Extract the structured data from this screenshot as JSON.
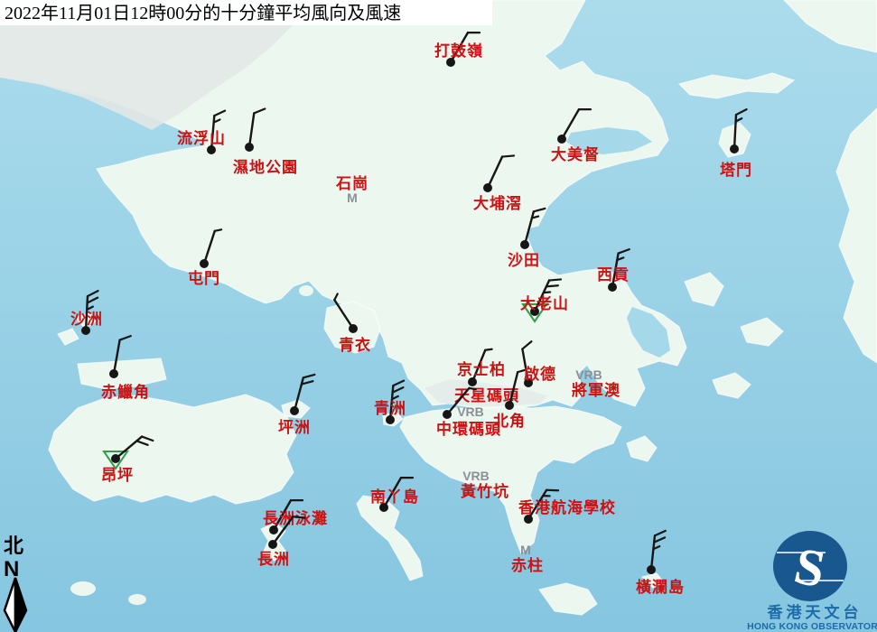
{
  "title": "2022年11月01日12時00分的十分鐘平均風向及風速",
  "colors": {
    "sea_top": "#abdcec",
    "sea_bottom": "#86c6e0",
    "land": "#ecf7ef",
    "urban": "#e2e8e6",
    "label_red": "#cc1212",
    "remark_gray": "#8a9094",
    "barb_black": "#161616",
    "triangle_green": "#2f9e44",
    "logo_blue": "#19578f",
    "logo_text_blue": "#1c6cab",
    "title_bg": "#ffffff"
  },
  "compass": {
    "zh": "北",
    "en": "N"
  },
  "logo": {
    "zh": "香港天文台",
    "en": "HONG KONG OBSERVATORY"
  },
  "legend_remarks": {
    "variable": "VRB",
    "missing": "M"
  },
  "stations": [
    {
      "id": "ta-kwu-ling",
      "name": "打鼓嶺",
      "dot": [
        499,
        69
      ],
      "barb": {
        "from_deg": 30,
        "ticks": [
          1
        ]
      },
      "label": [
        508,
        56
      ]
    },
    {
      "id": "lau-fau-shan",
      "name": "流浮山",
      "dot": [
        234,
        166
      ],
      "barb": {
        "from_deg": 5,
        "ticks": [
          1,
          0.5
        ]
      },
      "label": [
        223,
        153
      ]
    },
    {
      "id": "wetland-park",
      "name": "濕地公園",
      "dot": [
        276,
        163
      ],
      "barb": {
        "from_deg": 8,
        "ticks": [
          1
        ]
      },
      "label": [
        294,
        185
      ]
    },
    {
      "id": "shek-kong",
      "name": "石崗",
      "label": [
        390,
        203
      ],
      "remark": {
        "text": "M",
        "at": [
          390,
          219
        ]
      }
    },
    {
      "id": "tai-po-kau",
      "name": "大埔滘",
      "dot": [
        540,
        208
      ],
      "barb": {
        "from_deg": 25,
        "ticks": [
          1
        ]
      },
      "label": [
        551,
        225
      ]
    },
    {
      "id": "tai-mei-tuk",
      "name": "大美督",
      "dot": [
        622,
        154
      ],
      "barb": {
        "from_deg": 30,
        "ticks": [
          1
        ]
      },
      "label": [
        637,
        171
      ]
    },
    {
      "id": "tap-mun",
      "name": "塔門",
      "dot": [
        813,
        165
      ],
      "barb": {
        "from_deg": 3,
        "ticks": [
          1,
          0.5
        ]
      },
      "label": [
        815,
        188
      ]
    },
    {
      "id": "sha-tin",
      "name": "沙田",
      "dot": [
        581,
        271
      ],
      "barb": {
        "from_deg": 15,
        "ticks": [
          1,
          0.5
        ]
      },
      "label": [
        580,
        288
      ]
    },
    {
      "id": "sai-kung",
      "name": "西貢",
      "dot": [
        678,
        318
      ],
      "barb": {
        "from_deg": 10,
        "ticks": [
          1,
          0.5
        ]
      },
      "label": [
        679,
        304
      ]
    },
    {
      "id": "tates-cairn",
      "name": "大老山",
      "dot": [
        592,
        345
      ],
      "barb": {
        "from_deg": 25,
        "ticks": [
          1,
          1,
          0.5
        ]
      },
      "label": [
        603,
        336
      ],
      "triangle": true
    },
    {
      "id": "tuen-mun",
      "name": "屯門",
      "dot": [
        226,
        292
      ],
      "barb": {
        "from_deg": 18,
        "ticks": [
          0.5
        ]
      },
      "label": [
        226,
        308
      ]
    },
    {
      "id": "sha-chau",
      "name": "沙洲",
      "dot": [
        95,
        366
      ],
      "barb": {
        "from_deg": 3,
        "ticks": [
          1,
          1,
          0.5
        ]
      },
      "label": [
        96,
        353
      ]
    },
    {
      "id": "chek-lap-kok",
      "name": "赤鱲角",
      "dot": [
        126,
        414
      ],
      "barb": {
        "from_deg": 10,
        "ticks": [
          1
        ]
      },
      "label": [
        139,
        434
      ]
    },
    {
      "id": "tsing-yi",
      "name": "青衣",
      "dot": [
        391,
        364
      ],
      "barb": {
        "from_deg": -33,
        "ticks": [
          0.5
        ]
      },
      "label": [
        393,
        382
      ]
    },
    {
      "id": "kings-park",
      "name": "京士柏",
      "dot": [
        523,
        423
      ],
      "barb": {
        "from_deg": 22,
        "ticks": [
          0.5
        ]
      },
      "label": [
        533,
        409
      ]
    },
    {
      "id": "kai-tak",
      "name": "啟德",
      "dot": [
        585,
        424
      ],
      "barb": {
        "from_deg": -10,
        "ticks": [
          1
        ]
      },
      "label": [
        598,
        414
      ]
    },
    {
      "id": "tseung-kwan-o",
      "name": "將軍澳",
      "label": [
        660,
        432
      ],
      "remark": {
        "text": "VRB",
        "at": [
          652,
          415
        ]
      }
    },
    {
      "id": "star-ferry-pier",
      "name": "天星碼頭",
      "label": [
        539,
        438
      ],
      "remark": {
        "text": "VRB",
        "at": [
          521,
          456
        ]
      }
    },
    {
      "id": "central-pier",
      "name": "中環碼頭",
      "dot": [
        495,
        459
      ],
      "barb": {
        "from_deg": 40,
        "ticks": [
          0.5
        ]
      },
      "label": [
        519,
        475
      ]
    },
    {
      "id": "north-point",
      "name": "北角",
      "dot": [
        564,
        449
      ],
      "barb": {
        "from_deg": 14,
        "ticks": [
          0.5
        ]
      },
      "label": [
        564,
        466
      ]
    },
    {
      "id": "green-island",
      "name": "青洲",
      "dot": [
        432,
        465
      ],
      "barb": {
        "from_deg": 5,
        "ticks": [
          1,
          1,
          0.5
        ]
      },
      "label": [
        432,
        452
      ]
    },
    {
      "id": "peng-chau",
      "name": "坪洲",
      "dot": [
        326,
        455
      ],
      "barb": {
        "from_deg": 15,
        "ticks": [
          1,
          1
        ]
      },
      "label": [
        326,
        473
      ]
    },
    {
      "id": "ngong-ping",
      "name": "昂坪",
      "dot": [
        128,
        508
      ],
      "barb": {
        "from_deg": 50,
        "ticks": [
          1,
          1
        ]
      },
      "label": [
        130,
        526
      ],
      "triangle": true
    },
    {
      "id": "lamma-island",
      "name": "南丫島",
      "dot": [
        425,
        562
      ],
      "barb": {
        "from_deg": 30,
        "ticks": [
          1
        ]
      },
      "label": [
        437,
        550
      ]
    },
    {
      "id": "wong-chuk-hang",
      "name": "黃竹坑",
      "label": [
        537,
        544
      ],
      "remark": {
        "text": "VRB",
        "at": [
          527,
          527
        ]
      }
    },
    {
      "id": "hk-sea-school",
      "name": "香港航海學校",
      "dot": [
        585,
        575
      ],
      "barb": {
        "from_deg": 32,
        "ticks": [
          1,
          0.5
        ]
      },
      "label": [
        628,
        562
      ]
    },
    {
      "id": "stanley",
      "name": "赤柱",
      "label": [
        584,
        626
      ],
      "remark": {
        "text": "M",
        "at": [
          582,
          609
        ]
      }
    },
    {
      "id": "cheung-chau-beach",
      "name": "長洲泳灘",
      "dot": [
        303,
        587
      ],
      "barb": {
        "from_deg": 30,
        "ticks": [
          1
        ]
      },
      "label": [
        327,
        574
      ]
    },
    {
      "id": "cheung-chau",
      "name": "長洲",
      "dot": [
        302,
        603
      ],
      "barb": {
        "from_deg": 36,
        "ticks": [
          1
        ]
      },
      "label": [
        303,
        619
      ]
    },
    {
      "id": "waglan-island",
      "name": "橫瀾島",
      "dot": [
        721,
        631
      ],
      "barb": {
        "from_deg": 6,
        "ticks": [
          1,
          1,
          0.5
        ]
      },
      "label": [
        731,
        650
      ]
    }
  ]
}
